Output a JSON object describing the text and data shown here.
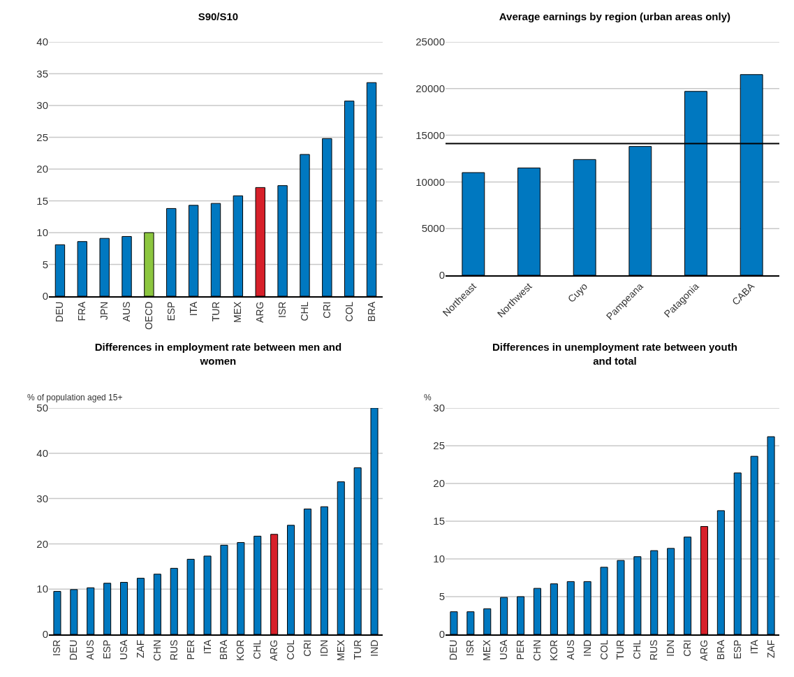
{
  "chart_data": [
    {
      "type": "bar",
      "title": "S90/S10",
      "categories": [
        "DEU",
        "FRA",
        "JPN",
        "AUS",
        "OECD",
        "ESP",
        "ITA",
        "TUR",
        "MEX",
        "ARG",
        "ISR",
        "CHL",
        "CRI",
        "COL",
        "BRA"
      ],
      "values": [
        8.1,
        8.6,
        9.1,
        9.4,
        10.0,
        13.8,
        14.3,
        14.6,
        15.8,
        17.1,
        17.4,
        22.3,
        24.8,
        30.7,
        33.6
      ],
      "colors": [
        "#0078c0",
        "#0078c0",
        "#0078c0",
        "#0078c0",
        "#8cc63f",
        "#0078c0",
        "#0078c0",
        "#0078c0",
        "#0078c0",
        "#d7202a",
        "#0078c0",
        "#0078c0",
        "#0078c0",
        "#0078c0",
        "#0078c0"
      ],
      "ylim": [
        0,
        40
      ],
      "yticks": [
        0,
        5,
        10,
        15,
        20,
        25,
        30,
        35,
        40
      ],
      "grid": "y"
    },
    {
      "type": "bar",
      "title": "Average earnings by region (urban areas only)",
      "categories": [
        "Northeast",
        "Northwest",
        "Cuyo",
        "Pampeana",
        "Patagonia",
        "CABA"
      ],
      "values": [
        11000,
        11500,
        12400,
        13800,
        19700,
        21500
      ],
      "color": "#0078c0",
      "ylim": [
        0,
        25000
      ],
      "yticks": [
        0,
        5000,
        10000,
        15000,
        20000,
        25000
      ],
      "grid": "y",
      "ref_lines": [
        {
          "axis": "y",
          "value": 14100,
          "color": "#000000",
          "line_style": "solid"
        }
      ]
    },
    {
      "type": "bar",
      "title": "Differences in employment rate between men and women",
      "ylabel": "% of population aged 15+",
      "categories": [
        "ISR",
        "DEU",
        "AUS",
        "ESP",
        "USA",
        "ZAF",
        "CHN",
        "RUS",
        "PER",
        "ITA",
        "BRA",
        "KOR",
        "CHL",
        "ARG",
        "COL",
        "CRI",
        "IDN",
        "MEX",
        "TUR",
        "IND"
      ],
      "values": [
        9.5,
        9.9,
        10.3,
        11.3,
        11.5,
        12.4,
        13.3,
        14.6,
        16.6,
        17.3,
        19.7,
        20.3,
        21.7,
        22.1,
        24.1,
        27.7,
        28.2,
        33.7,
        36.8,
        50
      ],
      "colors": [
        "#0078c0",
        "#0078c0",
        "#0078c0",
        "#0078c0",
        "#0078c0",
        "#0078c0",
        "#0078c0",
        "#0078c0",
        "#0078c0",
        "#0078c0",
        "#0078c0",
        "#0078c0",
        "#0078c0",
        "#d7202a",
        "#0078c0",
        "#0078c0",
        "#0078c0",
        "#0078c0",
        "#0078c0",
        "#0078c0"
      ],
      "ylim": [
        0,
        50
      ],
      "yticks": [
        0,
        10,
        20,
        30,
        40,
        50
      ],
      "grid": "y"
    },
    {
      "type": "bar",
      "title": "Differences in unemployment rate between youth and total",
      "ylabel": "%",
      "categories": [
        "DEU",
        "ISR",
        "MEX",
        "USA",
        "PER",
        "CHN",
        "KOR",
        "AUS",
        "IND",
        "COL",
        "TUR",
        "CHL",
        "RUS",
        "IDN",
        "CRI",
        "ARG",
        "BRA",
        "ESP",
        "ITA",
        "ZAF"
      ],
      "values": [
        3.0,
        3.0,
        3.4,
        4.9,
        5.0,
        6.1,
        6.7,
        7.0,
        7.0,
        8.9,
        9.8,
        10.3,
        11.1,
        11.4,
        12.9,
        14.3,
        16.4,
        21.4,
        23.6,
        26.2
      ],
      "colors": [
        "#0078c0",
        "#0078c0",
        "#0078c0",
        "#0078c0",
        "#0078c0",
        "#0078c0",
        "#0078c0",
        "#0078c0",
        "#0078c0",
        "#0078c0",
        "#0078c0",
        "#0078c0",
        "#0078c0",
        "#0078c0",
        "#0078c0",
        "#d7202a",
        "#0078c0",
        "#0078c0",
        "#0078c0",
        "#0078c0"
      ],
      "ylim": [
        0,
        30
      ],
      "yticks": [
        0,
        5,
        10,
        15,
        20,
        25,
        30
      ],
      "grid": "y"
    }
  ]
}
